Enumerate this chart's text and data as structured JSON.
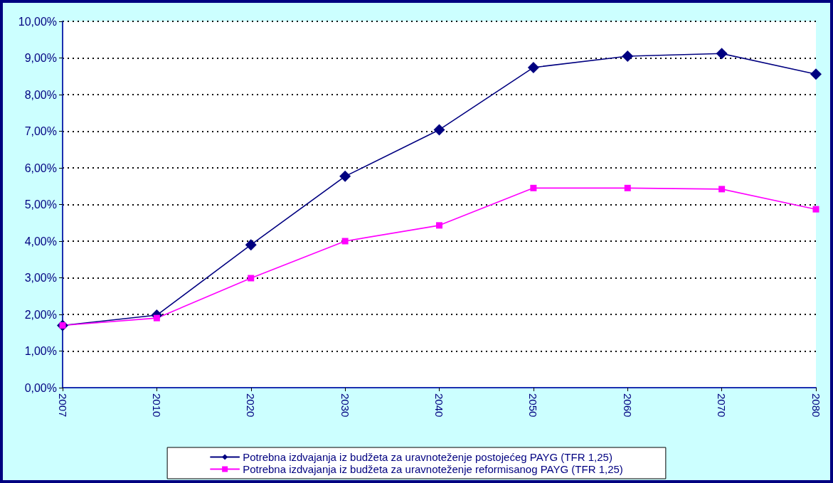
{
  "chart_data": {
    "type": "line",
    "categories": [
      "2007",
      "2010",
      "2020",
      "2030",
      "2040",
      "2050",
      "2060",
      "2070",
      "2080"
    ],
    "series": [
      {
        "name": "Potrebna izdvajanja iz budžeta za uravnoteženje postojećeg PAYG (TFR 1,25)",
        "color": "#000080",
        "marker": "diamond",
        "values": [
          1.7,
          1.98,
          3.9,
          5.77,
          7.04,
          8.74,
          9.05,
          9.12,
          8.56
        ]
      },
      {
        "name": "Potrebna izdvajanja iz budžeta za uravnoteženje reformisanog PAYG (TFR 1,25)",
        "color": "#ff00ff",
        "marker": "square",
        "values": [
          1.7,
          1.9,
          2.99,
          4.0,
          4.43,
          5.45,
          5.45,
          5.42,
          4.87
        ]
      }
    ],
    "ylim": [
      0,
      10
    ],
    "yticks": [
      {
        "value": 0,
        "label": "0,00%"
      },
      {
        "value": 1,
        "label": "1,00%"
      },
      {
        "value": 2,
        "label": "2,00%"
      },
      {
        "value": 3,
        "label": "3,00%"
      },
      {
        "value": 4,
        "label": "4,00%"
      },
      {
        "value": 5,
        "label": "5,00%"
      },
      {
        "value": 6,
        "label": "6,00%"
      },
      {
        "value": 7,
        "label": "7,00%"
      },
      {
        "value": 8,
        "label": "8,00%"
      },
      {
        "value": 9,
        "label": "9,00%"
      },
      {
        "value": 10,
        "label": "10,00%"
      }
    ],
    "grid": "y",
    "line_style": "solid",
    "legend": "bottom"
  }
}
